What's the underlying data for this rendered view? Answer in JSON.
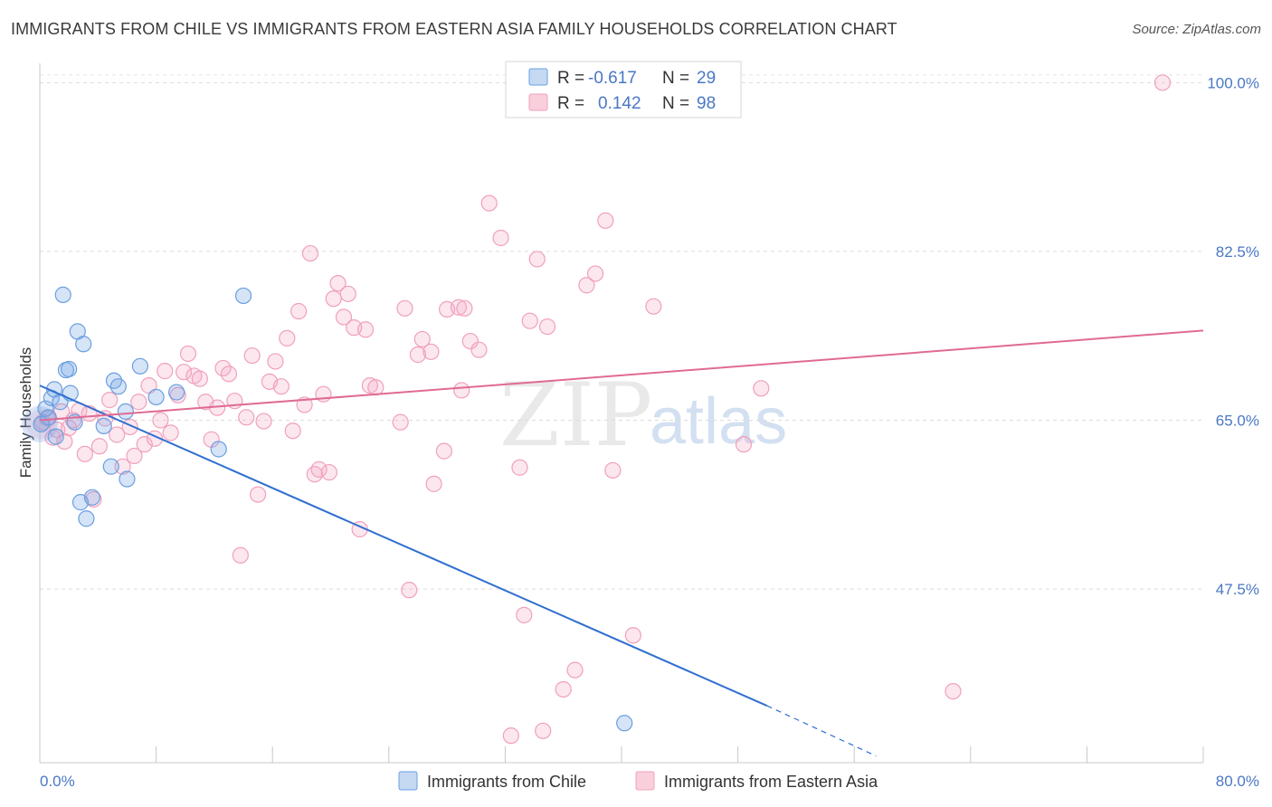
{
  "header": {
    "title": "IMMIGRANTS FROM CHILE VS IMMIGRANTS FROM EASTERN ASIA FAMILY HOUSEHOLDS CORRELATION CHART",
    "source": "Source: ZipAtlas.com"
  },
  "watermark": {
    "zip": "ZIP",
    "atlas": "atlas"
  },
  "legend": {
    "r_label": "R =",
    "n_label": "N =",
    "chile": {
      "r": "-0.617",
      "n": "29",
      "color": "#6a9fe0"
    },
    "asia": {
      "r": "0.142",
      "n": "98",
      "color": "#f0a0bc"
    }
  },
  "chart_data": {
    "type": "scatter",
    "title": "IMMIGRANTS FROM CHILE VS IMMIGRANTS FROM EASTERN ASIA FAMILY HOUSEHOLDS CORRELATION CHART",
    "xlabel": "",
    "ylabel": "Family Households",
    "xlim": [
      0,
      80
    ],
    "ylim": [
      29.5,
      102
    ],
    "x_tick_labels": {
      "min": "0.0%",
      "max": "80.0%"
    },
    "y_ticks": [
      {
        "value": 100,
        "label": "100.0%"
      },
      {
        "value": 82.5,
        "label": "82.5%"
      },
      {
        "value": 65,
        "label": "65.0%"
      },
      {
        "value": 47.5,
        "label": "47.5%"
      }
    ],
    "grid": true,
    "series": [
      {
        "name": "Immigrants from Chile",
        "color": "#6a9fe0",
        "line_color": "#2f6fd0",
        "trend": {
          "x_start": 0,
          "y_start": 68.6,
          "x_end": 50,
          "y_end": 35.4,
          "x_dash_end": 57.5,
          "y_dash_end": 30.2
        },
        "points": [
          [
            0.1,
            64.6
          ],
          [
            0.4,
            66.2
          ],
          [
            0.6,
            65.3
          ],
          [
            0.8,
            67.3
          ],
          [
            1.0,
            68.2
          ],
          [
            1.1,
            63.3
          ],
          [
            1.4,
            66.9
          ],
          [
            1.6,
            78.0
          ],
          [
            1.8,
            70.2
          ],
          [
            2.0,
            70.3
          ],
          [
            2.1,
            67.8
          ],
          [
            2.4,
            64.8
          ],
          [
            2.6,
            74.2
          ],
          [
            2.8,
            56.5
          ],
          [
            3.0,
            72.9
          ],
          [
            3.2,
            54.8
          ],
          [
            3.6,
            57.0
          ],
          [
            4.4,
            64.4
          ],
          [
            4.9,
            60.2
          ],
          [
            5.1,
            69.1
          ],
          [
            5.4,
            68.5
          ],
          [
            5.9,
            65.9
          ],
          [
            6.0,
            58.9
          ],
          [
            6.9,
            70.6
          ],
          [
            8.0,
            67.4
          ],
          [
            9.4,
            67.9
          ],
          [
            12.3,
            62.0
          ],
          [
            14.0,
            77.9
          ],
          [
            40.2,
            33.6
          ]
        ]
      },
      {
        "name": "Immigrants from Eastern Asia",
        "color": "#f0a0bc",
        "line_color": "#e06a94",
        "trend": {
          "x_start": 0,
          "y_start": 65.0,
          "x_end": 80,
          "y_end": 74.3
        },
        "points": [
          [
            0.2,
            64.8
          ],
          [
            0.5,
            65.2
          ],
          [
            0.9,
            63.2
          ],
          [
            1.2,
            64.0
          ],
          [
            1.5,
            65.9
          ],
          [
            1.7,
            62.8
          ],
          [
            2.0,
            64.2
          ],
          [
            2.3,
            65.0
          ],
          [
            2.7,
            66.0
          ],
          [
            3.1,
            61.5
          ],
          [
            3.4,
            65.7
          ],
          [
            3.7,
            56.8
          ],
          [
            4.1,
            62.3
          ],
          [
            4.5,
            65.2
          ],
          [
            4.8,
            67.1
          ],
          [
            5.3,
            63.5
          ],
          [
            5.7,
            60.2
          ],
          [
            6.2,
            64.3
          ],
          [
            6.5,
            61.3
          ],
          [
            6.8,
            66.9
          ],
          [
            7.2,
            62.5
          ],
          [
            7.5,
            68.6
          ],
          [
            7.9,
            63.1
          ],
          [
            8.3,
            65.0
          ],
          [
            8.6,
            70.1
          ],
          [
            9.0,
            63.7
          ],
          [
            9.5,
            67.6
          ],
          [
            9.9,
            70.0
          ],
          [
            10.2,
            71.9
          ],
          [
            10.6,
            69.6
          ],
          [
            11.0,
            69.3
          ],
          [
            11.4,
            66.9
          ],
          [
            11.8,
            63.0
          ],
          [
            12.2,
            66.3
          ],
          [
            12.6,
            70.4
          ],
          [
            13.0,
            69.8
          ],
          [
            13.4,
            67.0
          ],
          [
            13.8,
            51.0
          ],
          [
            14.2,
            65.3
          ],
          [
            14.6,
            71.7
          ],
          [
            15.0,
            57.3
          ],
          [
            15.4,
            64.9
          ],
          [
            15.8,
            69.0
          ],
          [
            16.2,
            71.1
          ],
          [
            16.6,
            68.5
          ],
          [
            17.0,
            73.5
          ],
          [
            17.4,
            63.9
          ],
          [
            17.8,
            76.3
          ],
          [
            18.2,
            66.6
          ],
          [
            18.6,
            82.3
          ],
          [
            18.9,
            59.4
          ],
          [
            19.2,
            59.9
          ],
          [
            19.5,
            67.7
          ],
          [
            19.9,
            59.6
          ],
          [
            20.2,
            77.6
          ],
          [
            20.5,
            79.2
          ],
          [
            20.9,
            75.7
          ],
          [
            21.2,
            78.1
          ],
          [
            21.6,
            74.6
          ],
          [
            22.0,
            53.7
          ],
          [
            22.4,
            74.4
          ],
          [
            22.7,
            68.6
          ],
          [
            23.1,
            68.4
          ],
          [
            24.8,
            64.8
          ],
          [
            25.1,
            76.6
          ],
          [
            25.4,
            47.4
          ],
          [
            26.0,
            71.8
          ],
          [
            26.3,
            73.4
          ],
          [
            27.1,
            58.4
          ],
          [
            27.8,
            61.8
          ],
          [
            26.9,
            72.1
          ],
          [
            28.0,
            76.5
          ],
          [
            28.8,
            76.7
          ],
          [
            29.2,
            76.6
          ],
          [
            29.6,
            73.2
          ],
          [
            30.2,
            72.3
          ],
          [
            30.9,
            87.5
          ],
          [
            31.7,
            83.9
          ],
          [
            32.4,
            32.3
          ],
          [
            33.0,
            60.1
          ],
          [
            33.3,
            44.8
          ],
          [
            33.7,
            75.3
          ],
          [
            34.2,
            81.7
          ],
          [
            34.9,
            74.7
          ],
          [
            34.6,
            32.8
          ],
          [
            36.0,
            37.1
          ],
          [
            36.8,
            39.1
          ],
          [
            37.6,
            79.0
          ],
          [
            38.2,
            80.2
          ],
          [
            38.9,
            85.7
          ],
          [
            39.4,
            59.8
          ],
          [
            40.8,
            42.7
          ],
          [
            42.2,
            76.8
          ],
          [
            48.4,
            62.5
          ],
          [
            49.6,
            68.3
          ],
          [
            62.8,
            36.9
          ],
          [
            77.2,
            100.0
          ],
          [
            29.0,
            68.1
          ]
        ]
      }
    ]
  },
  "bottom_legend": {
    "chile_label": "Immigrants from Chile",
    "asia_label": "Immigrants from Eastern Asia"
  }
}
